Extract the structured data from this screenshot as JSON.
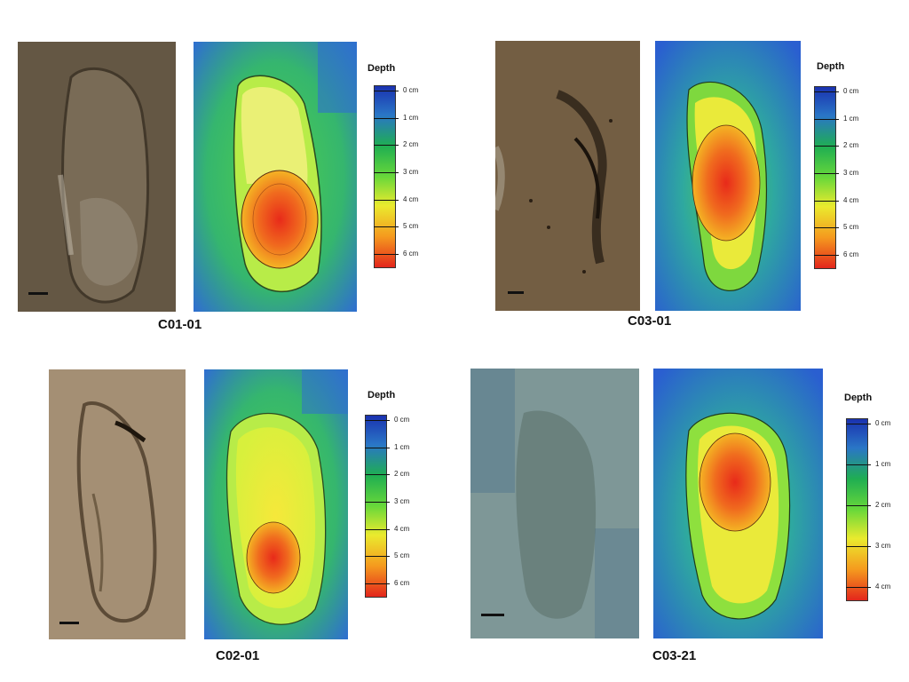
{
  "panels": [
    {
      "id": "c01",
      "label": "C01-01",
      "legend_title": "Depth",
      "ticks": [
        "0 cm",
        "1 cm",
        "2 cm",
        "3 cm",
        "4 cm",
        "5 cm",
        "6 cm"
      ],
      "photo_tone": "#6a5c48"
    },
    {
      "id": "c03",
      "label": "C03-01",
      "legend_title": "Depth",
      "ticks": [
        "0 cm",
        "1 cm",
        "2 cm",
        "3 cm",
        "4 cm",
        "5 cm",
        "6 cm"
      ],
      "photo_tone": "#7a6346"
    },
    {
      "id": "c02",
      "label": "C02-01",
      "legend_title": "Depth",
      "ticks": [
        "0 cm",
        "1 cm",
        "2 cm",
        "3 cm",
        "4 cm",
        "5 cm",
        "6 cm"
      ],
      "photo_tone": "#9a8468"
    },
    {
      "id": "c21",
      "label": "C03-21",
      "legend_title": "Depth",
      "ticks": [
        "0 cm",
        "1 cm",
        "2 cm",
        "3 cm",
        "4 cm"
      ],
      "photo_tone": "#6f8a8e"
    }
  ],
  "colormap": [
    "#1f3fb8",
    "#2f7fc8",
    "#22b04a",
    "#5fd640",
    "#e8e830",
    "#f5a020",
    "#e83020"
  ]
}
